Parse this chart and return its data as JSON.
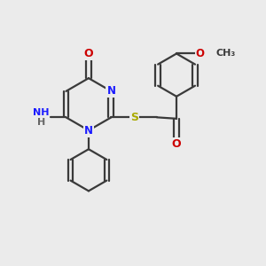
{
  "bg_color": "#ebebeb",
  "atom_colors": {
    "C": "#3a3a3a",
    "N": "#1a1aff",
    "O": "#cc0000",
    "S": "#aaaa00",
    "H": "#666666"
  },
  "bond_color": "#3a3a3a",
  "line_width": 1.6
}
